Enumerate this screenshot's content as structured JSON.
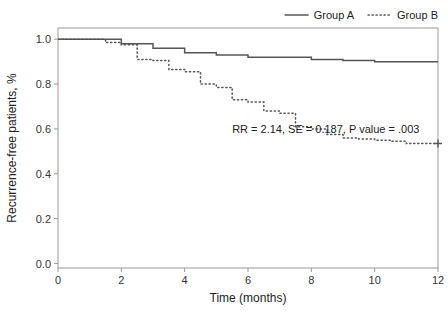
{
  "chart_data": {
    "type": "step",
    "xlabel": "Time (months)",
    "ylabel": "Recurrence-free patients, %",
    "xlim": [
      0,
      12
    ],
    "ylim": [
      -0.02,
      1.05
    ],
    "xticks": [
      0,
      2,
      4,
      6,
      8,
      10,
      12
    ],
    "yticks": [
      {
        "value": 0.0,
        "label": "0.0"
      },
      0.2,
      0.4,
      0.6,
      0.8,
      {
        "value": 1.0,
        "label": "1.0"
      }
    ],
    "grid": false,
    "legend": "upper right",
    "annotations": [
      {
        "text": "RR = 2.14, SE = 0.187, P value = .003",
        "x": 5.5,
        "y": 0.58
      }
    ],
    "series": [
      {
        "name": "Group A",
        "color": "#555555",
        "line_style": "solid",
        "x": [
          0,
          2.0,
          2.0,
          3.0,
          3.0,
          4.0,
          4.0,
          5.0,
          5.0,
          6.0,
          6.0,
          8.0,
          8.0,
          9.0,
          9.0,
          10.0,
          10.0,
          12.0
        ],
        "values": [
          1.0,
          1.0,
          0.98,
          0.98,
          0.96,
          0.96,
          0.94,
          0.94,
          0.93,
          0.93,
          0.92,
          0.92,
          0.91,
          0.91,
          0.905,
          0.905,
          0.9,
          0.9
        ]
      },
      {
        "name": "Group B",
        "color": "#555555",
        "line_style": "dotted",
        "marker": "plus",
        "x": [
          0,
          1.5,
          1.5,
          2.0,
          2.0,
          2.5,
          2.5,
          3.0,
          3.0,
          3.5,
          3.5,
          4.0,
          4.0,
          4.5,
          4.5,
          5.0,
          5.0,
          5.5,
          5.5,
          6.0,
          6.0,
          6.5,
          6.5,
          7.0,
          7.0,
          7.5,
          7.5,
          8.0,
          8.0,
          8.5,
          8.5,
          9.0,
          9.0,
          9.5,
          9.5,
          10.0,
          10.0,
          10.5,
          10.5,
          11.0,
          11.0,
          12.0
        ],
        "values": [
          1.0,
          1.0,
          0.985,
          0.985,
          0.975,
          0.975,
          0.91,
          0.91,
          0.905,
          0.905,
          0.865,
          0.865,
          0.855,
          0.855,
          0.8,
          0.8,
          0.785,
          0.785,
          0.73,
          0.73,
          0.72,
          0.72,
          0.68,
          0.68,
          0.67,
          0.67,
          0.61,
          0.61,
          0.6,
          0.6,
          0.575,
          0.575,
          0.56,
          0.56,
          0.555,
          0.555,
          0.55,
          0.55,
          0.545,
          0.545,
          0.535,
          0.535
        ],
        "censored_x": [
          12.0
        ],
        "censored_values": [
          0.535
        ]
      }
    ]
  }
}
